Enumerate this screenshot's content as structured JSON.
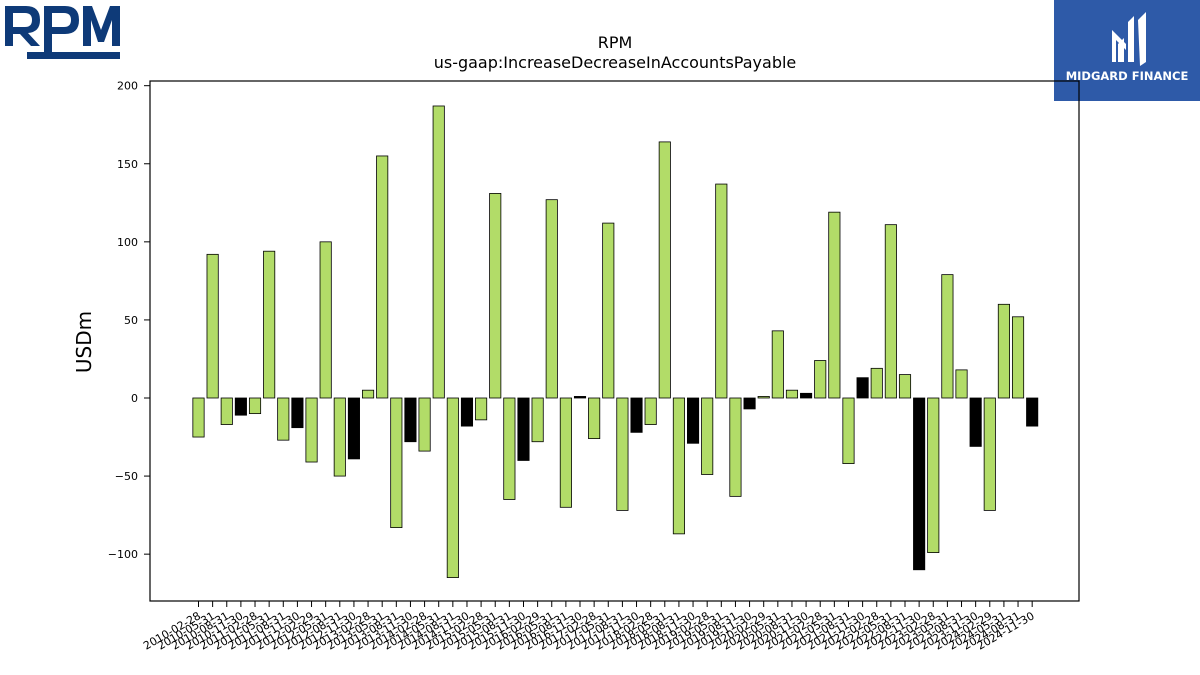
{
  "header": {
    "company_logo_text": "RPM",
    "brand_logo_text": "MIDGARD FINANCE"
  },
  "colors": {
    "positive_bar": "#b2dc68",
    "negative_highlight_bar": "#000000",
    "bar_outline": "#000000",
    "rpm_logo": "#0e3a78",
    "brand_background": "#2e5aa8"
  },
  "chart_data": {
    "type": "bar",
    "title": "RPM",
    "subtitle": "us-gaap:IncreaseDecreaseInAccountsPayable",
    "xlabel": "",
    "ylabel": "USDm",
    "ylim": [
      -130,
      203
    ],
    "yticks": [
      -100,
      -50,
      0,
      50,
      100,
      150,
      200
    ],
    "grid": false,
    "legend": "none",
    "categories": [
      "2010-02-28",
      "2010-05-31",
      "2010-08-31",
      "2010-11-30",
      "2011-02-28",
      "2011-05-31",
      "2011-08-31",
      "2011-11-30",
      "2012-02-29",
      "2012-05-31",
      "2012-08-31",
      "2012-11-30",
      "2013-02-28",
      "2013-05-31",
      "2013-08-31",
      "2013-11-30",
      "2014-02-28",
      "2014-05-31",
      "2014-08-31",
      "2014-11-30",
      "2015-02-28",
      "2015-05-31",
      "2015-08-31",
      "2015-11-30",
      "2016-02-29",
      "2016-05-31",
      "2016-08-31",
      "2016-11-30",
      "2017-02-28",
      "2017-05-31",
      "2017-08-31",
      "2017-11-30",
      "2018-02-28",
      "2018-05-31",
      "2018-08-31",
      "2018-11-30",
      "2019-02-28",
      "2019-05-31",
      "2019-08-31",
      "2019-11-30",
      "2020-02-29",
      "2020-05-31",
      "2020-08-31",
      "2020-11-30",
      "2021-02-28",
      "2021-05-31",
      "2021-08-31",
      "2021-11-30",
      "2022-02-28",
      "2022-05-31",
      "2022-08-31",
      "2022-11-30",
      "2023-02-28",
      "2023-05-31",
      "2023-08-31",
      "2023-11-30",
      "2024-02-29",
      "2024-05-31",
      "2024-08-31",
      "2024-11-30"
    ],
    "values": [
      -25,
      92,
      -17,
      -11,
      -10,
      94,
      -27,
      -19,
      -41,
      100,
      -50,
      -39,
      5,
      155,
      -83,
      -28,
      -34,
      187,
      -115,
      -18,
      -14,
      131,
      -65,
      -40,
      -28,
      127,
      -70,
      1,
      -26,
      112,
      -72,
      -22,
      -17,
      164,
      -87,
      -29,
      -49,
      137,
      -63,
      -7,
      1,
      43,
      5,
      3,
      24,
      119,
      -42,
      13,
      19,
      111,
      15,
      -110,
      -99,
      79,
      18,
      -31,
      -72,
      60,
      52,
      -18
    ],
    "highlight": [
      false,
      false,
      false,
      true,
      false,
      false,
      false,
      true,
      false,
      false,
      false,
      true,
      false,
      false,
      false,
      true,
      false,
      false,
      false,
      true,
      false,
      false,
      false,
      true,
      false,
      false,
      false,
      true,
      false,
      false,
      false,
      true,
      false,
      false,
      false,
      true,
      false,
      false,
      false,
      true,
      false,
      false,
      false,
      true,
      false,
      false,
      false,
      true,
      false,
      false,
      false,
      true,
      false,
      false,
      false,
      true,
      false,
      false,
      false,
      true
    ]
  }
}
